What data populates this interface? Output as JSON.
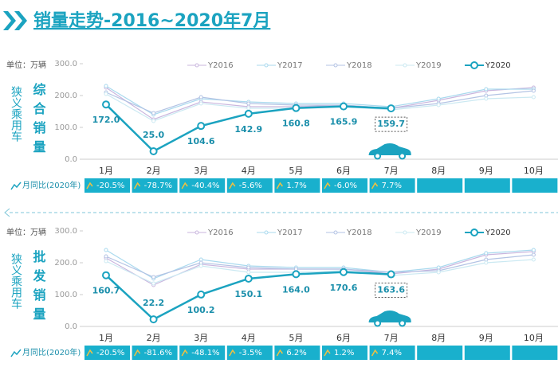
{
  "header": {
    "title": "销量走势-2016~2020年7月"
  },
  "chart_data": [
    {
      "type": "line",
      "unit_label": "单位：万辆",
      "side_label": "狭义乘用车",
      "title": "综合销量",
      "categories": [
        "1月",
        "2月",
        "3月",
        "4月",
        "5月",
        "6月",
        "7月",
        "8月",
        "9月",
        "10月"
      ],
      "ylim": [
        0,
        300
      ],
      "yticks": [
        {
          "value": 0,
          "label": "0.0"
        },
        {
          "value": 100,
          "label": "100.0"
        },
        {
          "value": 200,
          "label": "200.0"
        },
        {
          "value": 300,
          "label": "300.0"
        }
      ],
      "series": [
        {
          "name": "Y2016",
          "color": "#c9b6de",
          "values": [
            225,
            125,
            180,
            165,
            165,
            170,
            160,
            185,
            215,
            225
          ]
        },
        {
          "name": "Y2017",
          "color": "#a9d9ee",
          "values": [
            230,
            140,
            190,
            180,
            175,
            175,
            165,
            190,
            220,
            220
          ]
        },
        {
          "name": "Y2018",
          "color": "#b3c3e4",
          "values": [
            210,
            145,
            195,
            175,
            170,
            170,
            160,
            175,
            200,
            215
          ]
        },
        {
          "name": "Y2019",
          "color": "#cbe9f2",
          "values": [
            205,
            120,
            175,
            160,
            160,
            165,
            155,
            170,
            190,
            195
          ]
        },
        {
          "name": "Y2020",
          "color": "#1ba3c0",
          "values": [
            172.0,
            25.0,
            104.6,
            142.9,
            160.8,
            165.9,
            159.7,
            null,
            null,
            null
          ],
          "value_labels": [
            "172.0",
            "25.0",
            "104.6",
            "142.9",
            "160.8",
            "165.9",
            "159.7",
            null,
            null,
            null
          ]
        }
      ],
      "yoy_label": "月同比(2020年)",
      "yoy": [
        "-20.5%",
        "-78.7%",
        "-40.4%",
        "-5.6%",
        "1.7%",
        "-6.0%",
        "7.7%"
      ]
    },
    {
      "type": "line",
      "unit_label": "单位：万辆",
      "side_label": "狭义乘用车",
      "title": "批发销量",
      "categories": [
        "1月",
        "2月",
        "3月",
        "4月",
        "5月",
        "6月",
        "7月",
        "8月",
        "9月",
        "10月"
      ],
      "ylim": [
        0,
        300
      ],
      "yticks": [
        {
          "value": 0,
          "label": "0.0"
        },
        {
          "value": 100,
          "label": "100.0"
        },
        {
          "value": 200,
          "label": "200.0"
        },
        {
          "value": 300,
          "label": "300.0"
        }
      ],
      "series": [
        {
          "name": "Y2016",
          "color": "#c9b6de",
          "values": [
            215,
            130,
            195,
            180,
            180,
            180,
            165,
            180,
            225,
            235
          ]
        },
        {
          "name": "Y2017",
          "color": "#a9d9ee",
          "values": [
            240,
            150,
            210,
            190,
            185,
            185,
            170,
            185,
            230,
            240
          ]
        },
        {
          "name": "Y2018",
          "color": "#b3c3e4",
          "values": [
            220,
            155,
            200,
            185,
            180,
            180,
            170,
            175,
            210,
            225
          ]
        },
        {
          "name": "Y2019",
          "color": "#cbe9f2",
          "values": [
            205,
            135,
            190,
            170,
            170,
            175,
            160,
            170,
            200,
            210
          ]
        },
        {
          "name": "Y2020",
          "color": "#1ba3c0",
          "values": [
            160.7,
            22.2,
            100.2,
            150.1,
            164.0,
            170.6,
            163.6,
            null,
            null,
            null
          ],
          "value_labels": [
            "160.7",
            "22.2",
            "100.2",
            "150.1",
            "164.0",
            "170.6",
            "163.6",
            null,
            null,
            null
          ]
        }
      ],
      "yoy_label": "月同比(2020年)",
      "yoy": [
        "-20.5%",
        "-81.6%",
        "-48.1%",
        "-3.5%",
        "6.2%",
        "1.2%",
        "7.4%"
      ]
    }
  ]
}
